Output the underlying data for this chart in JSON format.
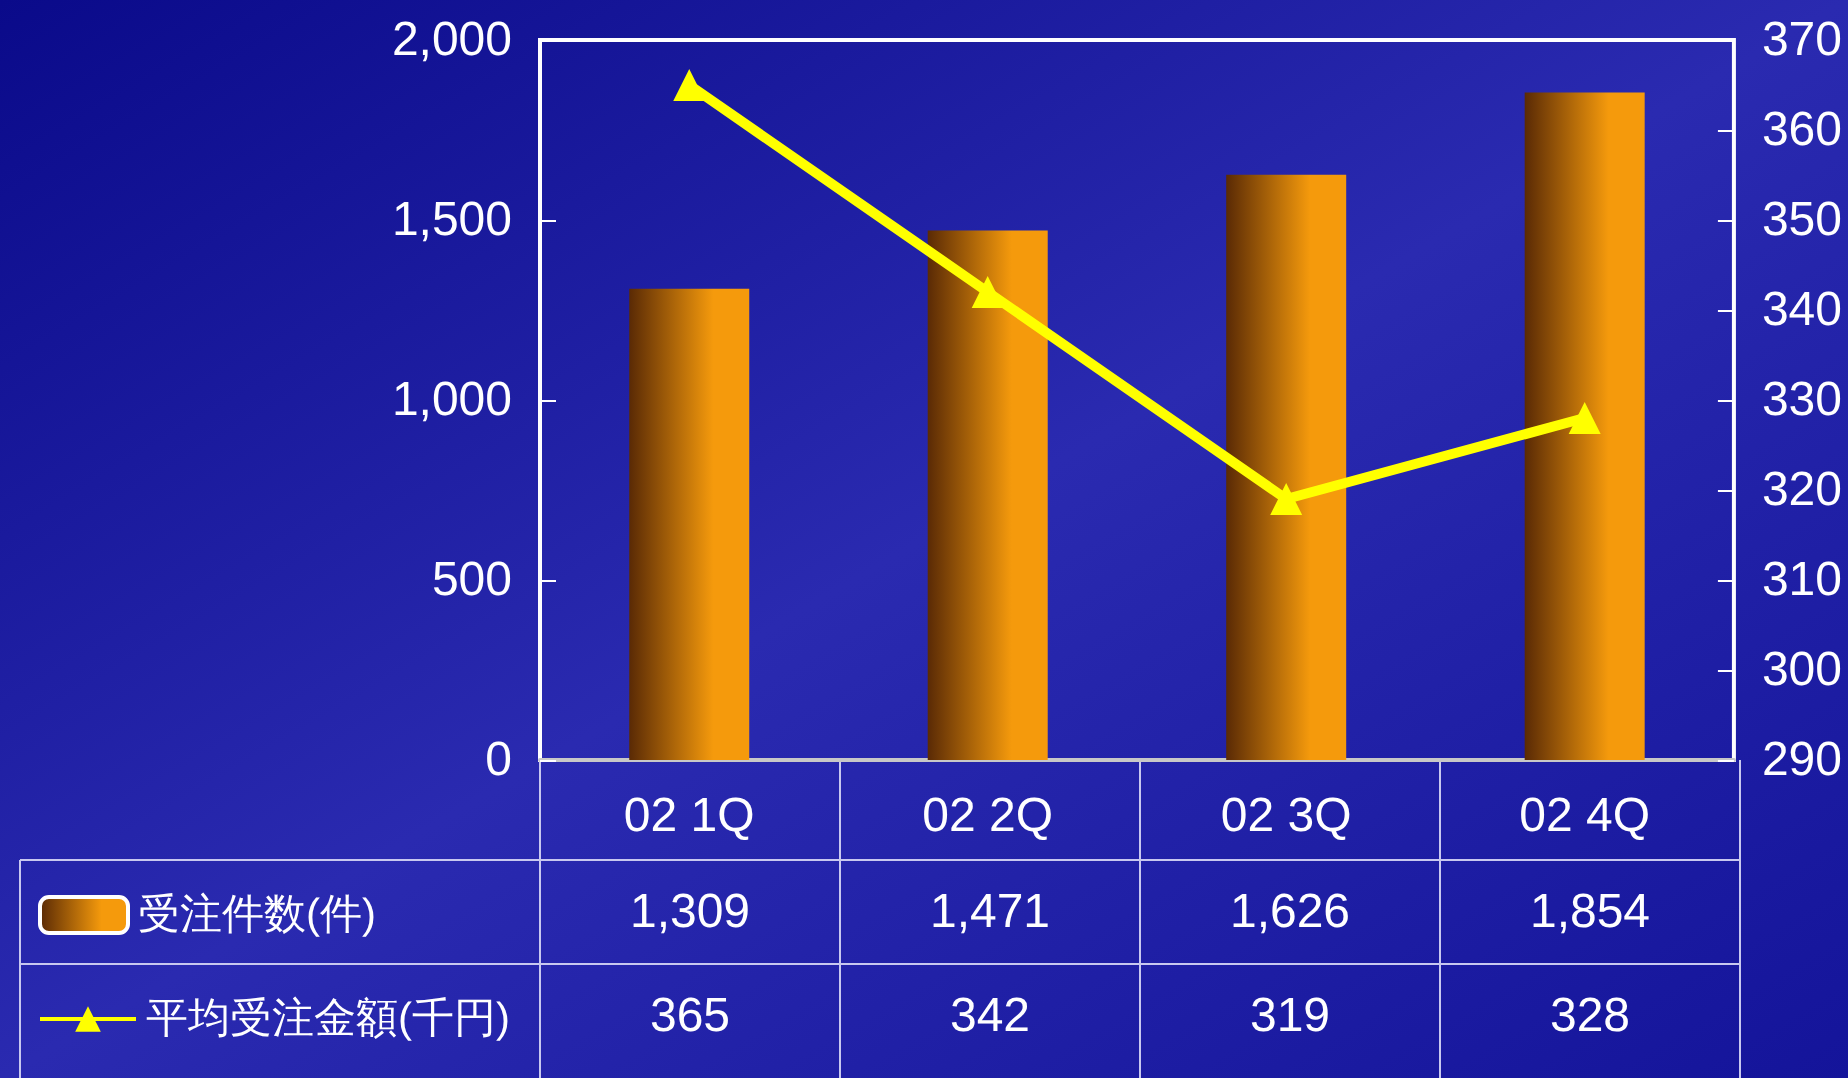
{
  "chart_data": {
    "type": "bar",
    "categories": [
      "02 1Q",
      "02 2Q",
      "02 3Q",
      "02 4Q"
    ],
    "series": [
      {
        "name": "受注件数(件)",
        "color": "#f59a0c",
        "values": [
          1309,
          1471,
          1626,
          1854
        ],
        "value_labels": [
          "1,309",
          "1,471",
          "1,626",
          "1,854"
        ]
      },
      {
        "name": "平均受注金額(千円)",
        "type": "line",
        "axis": "y2",
        "color": "#ffff00",
        "values": [
          365,
          342,
          319,
          328
        ],
        "value_labels": [
          "365",
          "342",
          "319",
          "328"
        ]
      }
    ],
    "ylim": [
      0,
      2000
    ],
    "yticks": [
      0,
      500,
      {
        "value": 1000,
        "label": "1,000"
      },
      {
        "value": 1500,
        "label": "1,500"
      },
      {
        "value": 2000,
        "label": "2,000"
      }
    ],
    "y2lim": [
      290,
      370
    ],
    "y2ticks": [
      290,
      300,
      310,
      320,
      330,
      340,
      350,
      360,
      370
    ],
    "marker": "triangle",
    "legend": "bottom left"
  }
}
